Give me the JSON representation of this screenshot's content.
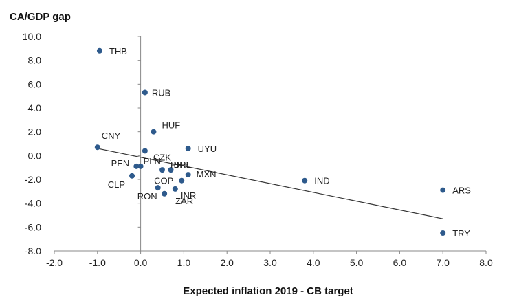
{
  "chart_data": {
    "type": "scatter",
    "title": "",
    "xlabel": "Expected inflation 2019 - CB target",
    "ylabel": "CA/GDP gap",
    "xlim": [
      -2.0,
      8.0
    ],
    "ylim": [
      -8.0,
      10.0
    ],
    "x_ticks": [
      "-2.0",
      "-1.0",
      "0.0",
      "1.0",
      "2.0",
      "3.0",
      "4.0",
      "5.0",
      "6.0",
      "7.0",
      "8.0"
    ],
    "y_ticks": [
      "-8.0",
      "-6.0",
      "-4.0",
      "-2.0",
      "0.0",
      "2.0",
      "4.0",
      "6.0",
      "8.0",
      "10.0"
    ],
    "grid": false,
    "point_color": "#2e5a8c",
    "trendline_color": "#333333",
    "trendline": {
      "x": [
        -1.0,
        7.0
      ],
      "y": [
        0.6,
        -5.3
      ]
    },
    "points": [
      {
        "label": "THB",
        "x": -0.95,
        "y": 8.8
      },
      {
        "label": "RUB",
        "x": 0.1,
        "y": 5.3
      },
      {
        "label": "HUF",
        "x": 0.3,
        "y": 2.0
      },
      {
        "label": "CNY",
        "x": -1.0,
        "y": 0.7
      },
      {
        "label": "CZK",
        "x": 0.1,
        "y": 0.4
      },
      {
        "label": "UYU",
        "x": 1.1,
        "y": 0.6
      },
      {
        "label": "PEN",
        "x": -0.1,
        "y": -0.9
      },
      {
        "label": "PLN",
        "x": 0.0,
        "y": -0.9
      },
      {
        "label": "PHP",
        "x": 0.5,
        "y": -1.2
      },
      {
        "label": "BRL",
        "x": 0.7,
        "y": -1.2
      },
      {
        "label": "CLP",
        "x": -0.2,
        "y": -1.7
      },
      {
        "label": "MXN",
        "x": 1.1,
        "y": -1.6
      },
      {
        "label": "COP",
        "x": 0.95,
        "y": -2.1
      },
      {
        "label": "INR",
        "x": 0.8,
        "y": -2.8
      },
      {
        "label": "RON",
        "x": 0.4,
        "y": -2.7
      },
      {
        "label": "ZAR",
        "x": 0.55,
        "y": -3.2
      },
      {
        "label": "IND",
        "x": 3.8,
        "y": -2.1
      },
      {
        "label": "ARS",
        "x": 7.0,
        "y": -2.9
      },
      {
        "label": "TRY",
        "x": 7.0,
        "y": -6.5
      }
    ]
  }
}
